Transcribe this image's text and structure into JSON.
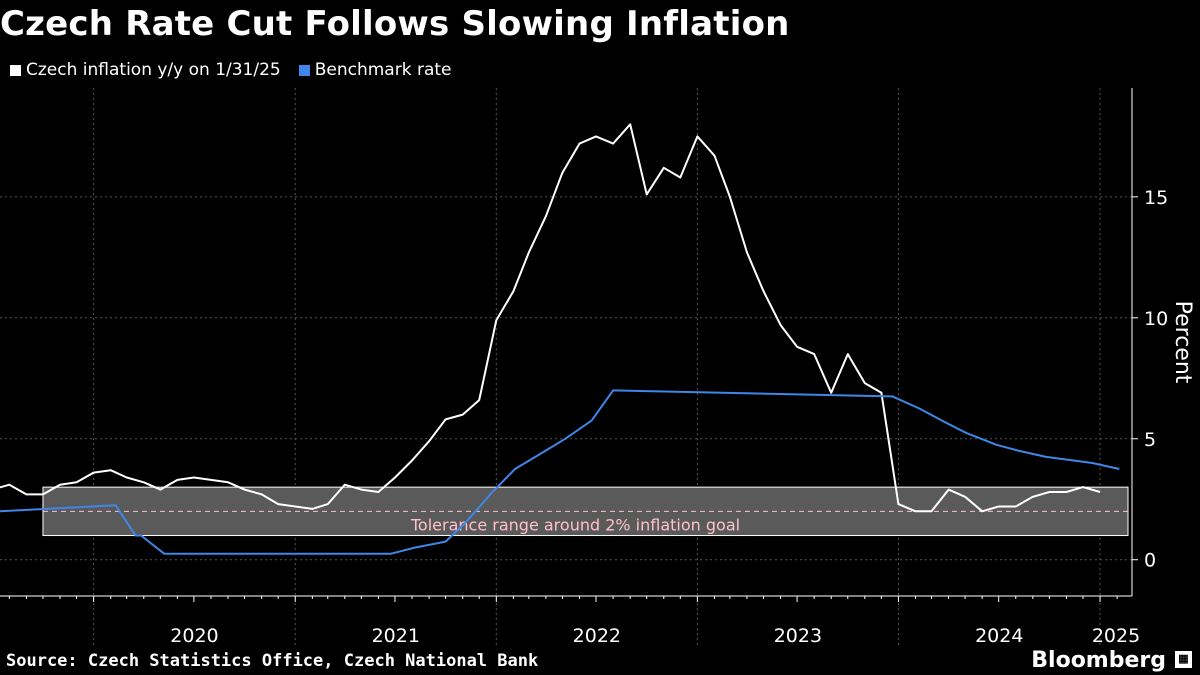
{
  "title": "Czech Rate Cut Follows Slowing Inflation",
  "source": "Source: Czech Statistics Office, Czech National Bank",
  "brand": "Bloomberg",
  "colors": {
    "background": "#000000",
    "inflation": "#ffffff",
    "rate": "#3f86e8",
    "band": "#5a5a5a",
    "band_label": "#ffc0cb",
    "grid": "#555555"
  },
  "chart_data": {
    "type": "line",
    "title": "Czech Rate Cut Follows Slowing Inflation",
    "ylabel": "Percent",
    "xlabel": "",
    "ylim": [
      -1.5,
      19.5
    ],
    "y_ticks": [
      0,
      5,
      10,
      15
    ],
    "x_range": [
      "2019-07-15",
      "2025-02-28"
    ],
    "year_labels": [
      "2020",
      "2021",
      "2022",
      "2023",
      "2024",
      "2025"
    ],
    "legend_position": "top-left",
    "grid": true,
    "band": {
      "low": 1,
      "high": 3,
      "start": "2019-10-01",
      "label": "Tolerance range around 2% inflation goal",
      "target": 2
    },
    "series": [
      {
        "name": "Czech inflation y/y on 1/31/25",
        "points": [
          [
            "2019-07-01",
            2.9
          ],
          [
            "2019-08-01",
            3.1
          ],
          [
            "2019-09-01",
            2.7
          ],
          [
            "2019-10-01",
            2.7
          ],
          [
            "2019-11-01",
            3.1
          ],
          [
            "2019-12-01",
            3.2
          ],
          [
            "2020-01-01",
            3.6
          ],
          [
            "2020-02-01",
            3.7
          ],
          [
            "2020-03-01",
            3.4
          ],
          [
            "2020-04-01",
            3.2
          ],
          [
            "2020-05-01",
            2.9
          ],
          [
            "2020-06-01",
            3.3
          ],
          [
            "2020-07-01",
            3.4
          ],
          [
            "2020-08-01",
            3.3
          ],
          [
            "2020-09-01",
            3.2
          ],
          [
            "2020-10-01",
            2.9
          ],
          [
            "2020-11-01",
            2.7
          ],
          [
            "2020-12-01",
            2.3
          ],
          [
            "2021-01-01",
            2.2
          ],
          [
            "2021-02-01",
            2.1
          ],
          [
            "2021-03-01",
            2.3
          ],
          [
            "2021-04-01",
            3.1
          ],
          [
            "2021-05-01",
            2.9
          ],
          [
            "2021-06-01",
            2.8
          ],
          [
            "2021-07-01",
            3.4
          ],
          [
            "2021-08-01",
            4.1
          ],
          [
            "2021-09-01",
            4.9
          ],
          [
            "2021-10-01",
            5.8
          ],
          [
            "2021-11-01",
            6.0
          ],
          [
            "2021-12-01",
            6.6
          ],
          [
            "2022-01-01",
            9.9
          ],
          [
            "2022-02-01",
            11.1
          ],
          [
            "2022-03-01",
            12.7
          ],
          [
            "2022-04-01",
            14.2
          ],
          [
            "2022-05-01",
            16.0
          ],
          [
            "2022-06-01",
            17.2
          ],
          [
            "2022-07-01",
            17.5
          ],
          [
            "2022-08-01",
            17.2
          ],
          [
            "2022-09-01",
            18.0
          ],
          [
            "2022-10-01",
            15.1
          ],
          [
            "2022-11-01",
            16.2
          ],
          [
            "2022-12-01",
            15.8
          ],
          [
            "2023-01-01",
            17.5
          ],
          [
            "2023-02-01",
            16.7
          ],
          [
            "2023-03-01",
            15.0
          ],
          [
            "2023-04-01",
            12.7
          ],
          [
            "2023-05-01",
            11.1
          ],
          [
            "2023-06-01",
            9.7
          ],
          [
            "2023-07-01",
            8.8
          ],
          [
            "2023-08-01",
            8.5
          ],
          [
            "2023-09-01",
            6.9
          ],
          [
            "2023-10-01",
            8.5
          ],
          [
            "2023-11-01",
            7.3
          ],
          [
            "2023-12-01",
            6.9
          ],
          [
            "2024-01-01",
            2.3
          ],
          [
            "2024-02-01",
            2.0
          ],
          [
            "2024-03-01",
            2.0
          ],
          [
            "2024-04-01",
            2.9
          ],
          [
            "2024-05-01",
            2.6
          ],
          [
            "2024-06-01",
            2.0
          ],
          [
            "2024-07-01",
            2.2
          ],
          [
            "2024-08-01",
            2.2
          ],
          [
            "2024-09-01",
            2.6
          ],
          [
            "2024-10-01",
            2.8
          ],
          [
            "2024-11-01",
            2.8
          ],
          [
            "2024-12-01",
            3.0
          ],
          [
            "2025-01-01",
            2.8
          ]
        ]
      },
      {
        "name": "Benchmark rate",
        "points": [
          [
            "2019-07-15",
            2.0
          ],
          [
            "2020-02-10",
            2.25
          ],
          [
            "2020-03-17",
            1.0
          ],
          [
            "2020-03-27",
            1.0
          ],
          [
            "2020-05-08",
            0.25
          ],
          [
            "2021-06-24",
            0.25
          ],
          [
            "2021-08-06",
            0.5
          ],
          [
            "2021-10-01",
            0.75
          ],
          [
            "2021-11-05",
            1.5
          ],
          [
            "2021-12-23",
            2.75
          ],
          [
            "2022-02-04",
            3.75
          ],
          [
            "2022-03-31",
            4.5
          ],
          [
            "2022-05-06",
            5.0
          ],
          [
            "2022-06-23",
            5.75
          ],
          [
            "2022-08-01",
            7.0
          ],
          [
            "2023-12-21",
            6.75
          ],
          [
            "2024-02-08",
            6.25
          ],
          [
            "2024-03-20",
            5.75
          ],
          [
            "2024-05-02",
            5.25
          ],
          [
            "2024-06-27",
            4.75
          ],
          [
            "2024-08-07",
            4.5
          ],
          [
            "2024-09-25",
            4.25
          ],
          [
            "2024-12-18",
            4.0
          ],
          [
            "2025-02-05",
            3.75
          ]
        ]
      }
    ]
  }
}
